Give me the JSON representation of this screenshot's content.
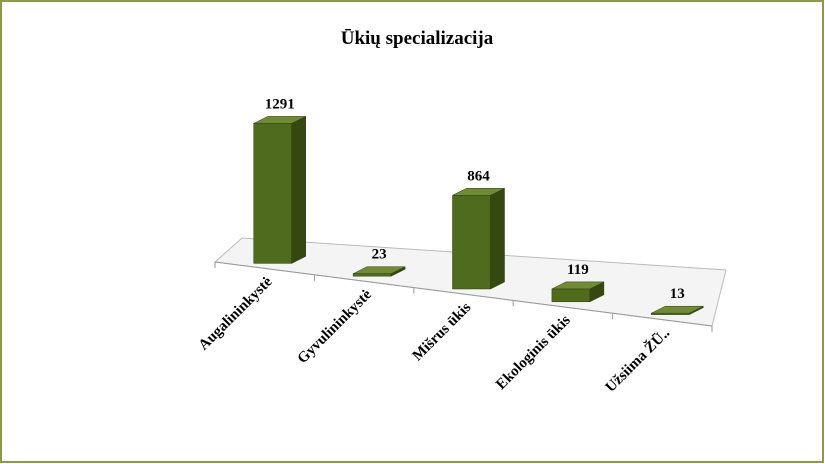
{
  "chart_data": {
    "type": "bar3d",
    "title": "Ūkių specializacija",
    "categories": [
      "Augalininkystė",
      "Gyvulininkystė",
      "Mišrus ūkis",
      "Ekologinis ūkis",
      "Užsiima ŽŪ.."
    ],
    "values": [
      1291,
      23,
      864,
      119,
      13
    ],
    "color": "#4f6b1e"
  }
}
